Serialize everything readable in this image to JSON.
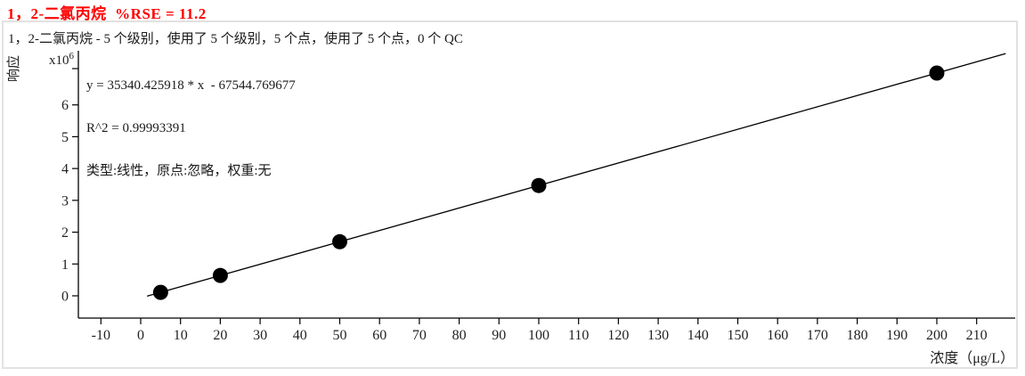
{
  "title": {
    "text": "1，2-二氯丙烷  %RSE = 11.2",
    "color": "#ff0000"
  },
  "subtitle": "1，2-二氯丙烷 - 5 个级别，使用了 5 个级别，5 个点，使用了 5 个点，0 个 QC",
  "annotation": {
    "equation": "y = 35340.425918 * x  - 67544.769677",
    "r_squared": "R^2 = 0.99993391",
    "fit_info": "类型:线性，原点:忽略，权重:无"
  },
  "chart_data": {
    "type": "scatter",
    "title": "1，2-二氯丙烷  %RSE = 11.2",
    "xlabel": "浓度（μg/L）",
    "ylabel": "响应",
    "y_scale_label": "x10^6",
    "x": [
      5,
      20,
      50,
      100,
      200
    ],
    "y": [
      109157,
      639264,
      1699477,
      3466498,
      7000540
    ],
    "fit": {
      "type": "linear",
      "slope": 35340.425918,
      "intercept": -67544.769677,
      "r2": 0.99993391,
      "origin": "忽略",
      "weight": "无",
      "rse_percent": 11.2
    },
    "x_ticks": [
      -10,
      0,
      10,
      20,
      30,
      40,
      50,
      60,
      70,
      80,
      90,
      100,
      110,
      120,
      130,
      140,
      150,
      160,
      170,
      180,
      190,
      200,
      210
    ],
    "y_ticks": [
      0,
      1,
      2,
      3,
      4,
      5,
      6
    ],
    "y_tick_scale": 1000000,
    "xlim": [
      -15.66,
      219.69
    ],
    "ylim": [
      -700000,
      7700000
    ],
    "grid": false,
    "legend": false,
    "marker": {
      "shape": "circle",
      "color": "#000000",
      "radius": 8.5
    },
    "line_color": "#000000",
    "axis_color": "#000000"
  }
}
